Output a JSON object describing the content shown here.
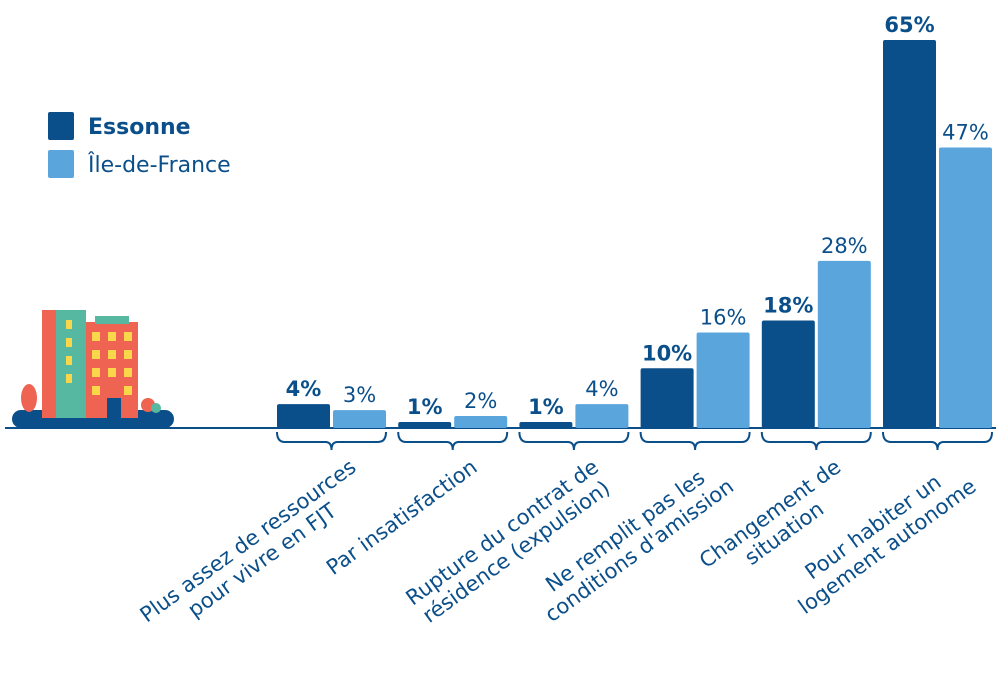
{
  "chart_data": {
    "type": "bar",
    "categories": [
      "Plus assez de ressources\npour vivre en FJT",
      "Par insatisfaction",
      "Rupture du contrat de\nrésidence (expulsion)",
      "Ne remplit pas les\nconditions d'amission",
      "Changement de\nsituation",
      "Pour habiter un\nlogement autonome"
    ],
    "series": [
      {
        "name": "Essonne",
        "color": "#0b4f8a",
        "values": [
          4,
          1,
          1,
          10,
          18,
          65
        ],
        "value_labels": [
          "4%",
          "1%",
          "1%",
          "10%",
          "18%",
          "65%"
        ]
      },
      {
        "name": "Île-de-France",
        "color": "#5aa6dc",
        "values": [
          3,
          2,
          4,
          16,
          28,
          47
        ],
        "value_labels": [
          "3%",
          "2%",
          "4%",
          "16%",
          "28%",
          "47%"
        ]
      }
    ],
    "legend": "upper left"
  }
}
